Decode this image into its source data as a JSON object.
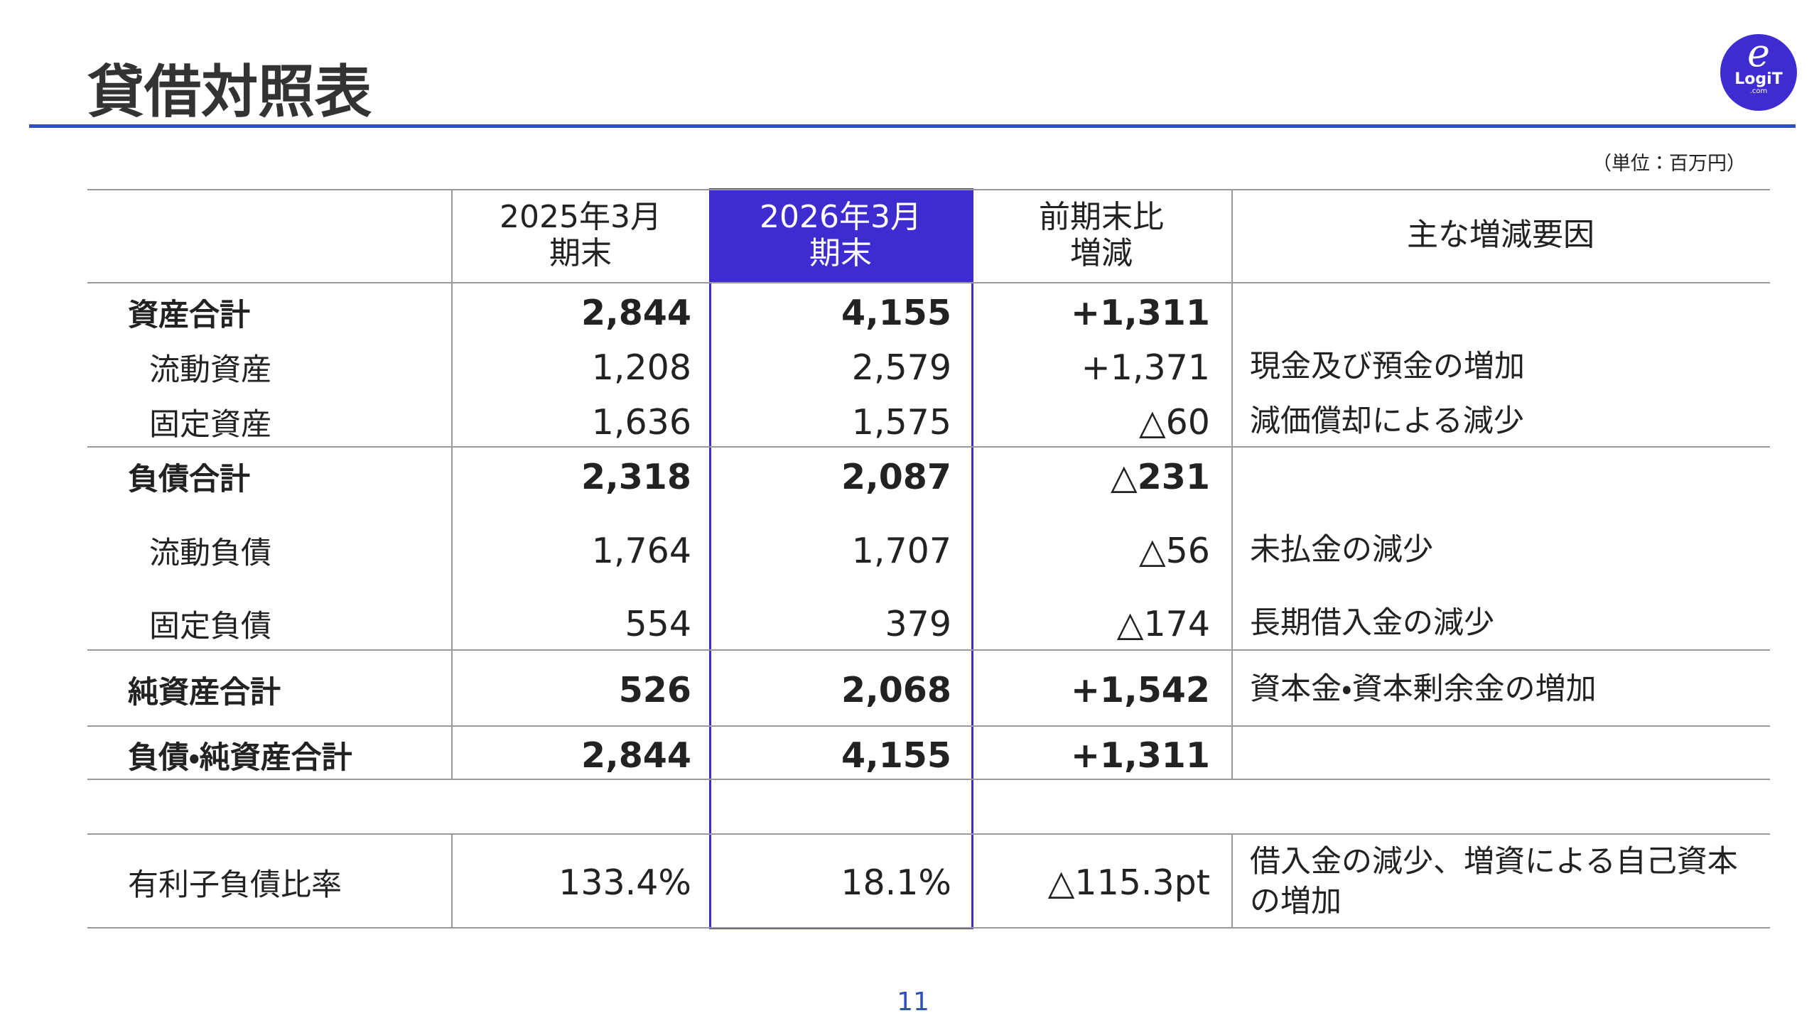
{
  "header": {
    "title": "貸借対照表",
    "logo_mark": "e",
    "logo_text": "LogiT",
    "logo_sub": ".com",
    "unit": "（単位：百万円）"
  },
  "table": {
    "columns": [
      "2025年3月\n期末",
      "2026年3月\n期末",
      "前期末比\n増減",
      "主な増減要因"
    ],
    "rows": [
      {
        "item": "資産合計",
        "fy2025": "2,844",
        "fy2026": "4,155",
        "change": "+1,311"
      },
      {
        "item": "流動資産",
        "fy2025": "1,208",
        "fy2026": "2,579",
        "change": "+1,371",
        "reason": "現金及び預金の増加"
      },
      {
        "item": "固定資産",
        "fy2025": "1,636",
        "fy2026": "1,575",
        "change": "△60",
        "reason": "減価償却による減少"
      },
      {
        "item": "負債合計",
        "fy2025": "2,318",
        "fy2026": "2,087",
        "change": "△231"
      },
      {
        "item": "流動負債",
        "fy2025": "1,764",
        "fy2026": "1,707",
        "change": "△56",
        "reason": "未払金の減少"
      },
      {
        "item": "固定負債",
        "fy2025": "554",
        "fy2026": "379",
        "change": "△174",
        "reason": "長期借入金の減少"
      },
      {
        "item": "純資産合計",
        "fy2025": "526",
        "fy2026": "2,068",
        "change": "+1,542",
        "reason": "資本金・資本剰余金の増加"
      },
      {
        "item": "負債・純資産合計",
        "fy2025": "2,844",
        "fy2026": "4,155",
        "change": "+1,311"
      },
      {
        "item": "有利子負債比率",
        "fy2025": "133.4%",
        "fy2026": "18.1%",
        "change": "△115.3pt",
        "reason": "借入金の減少、増資による自己資本の増加"
      }
    ]
  },
  "footer": {
    "page": "11"
  }
}
